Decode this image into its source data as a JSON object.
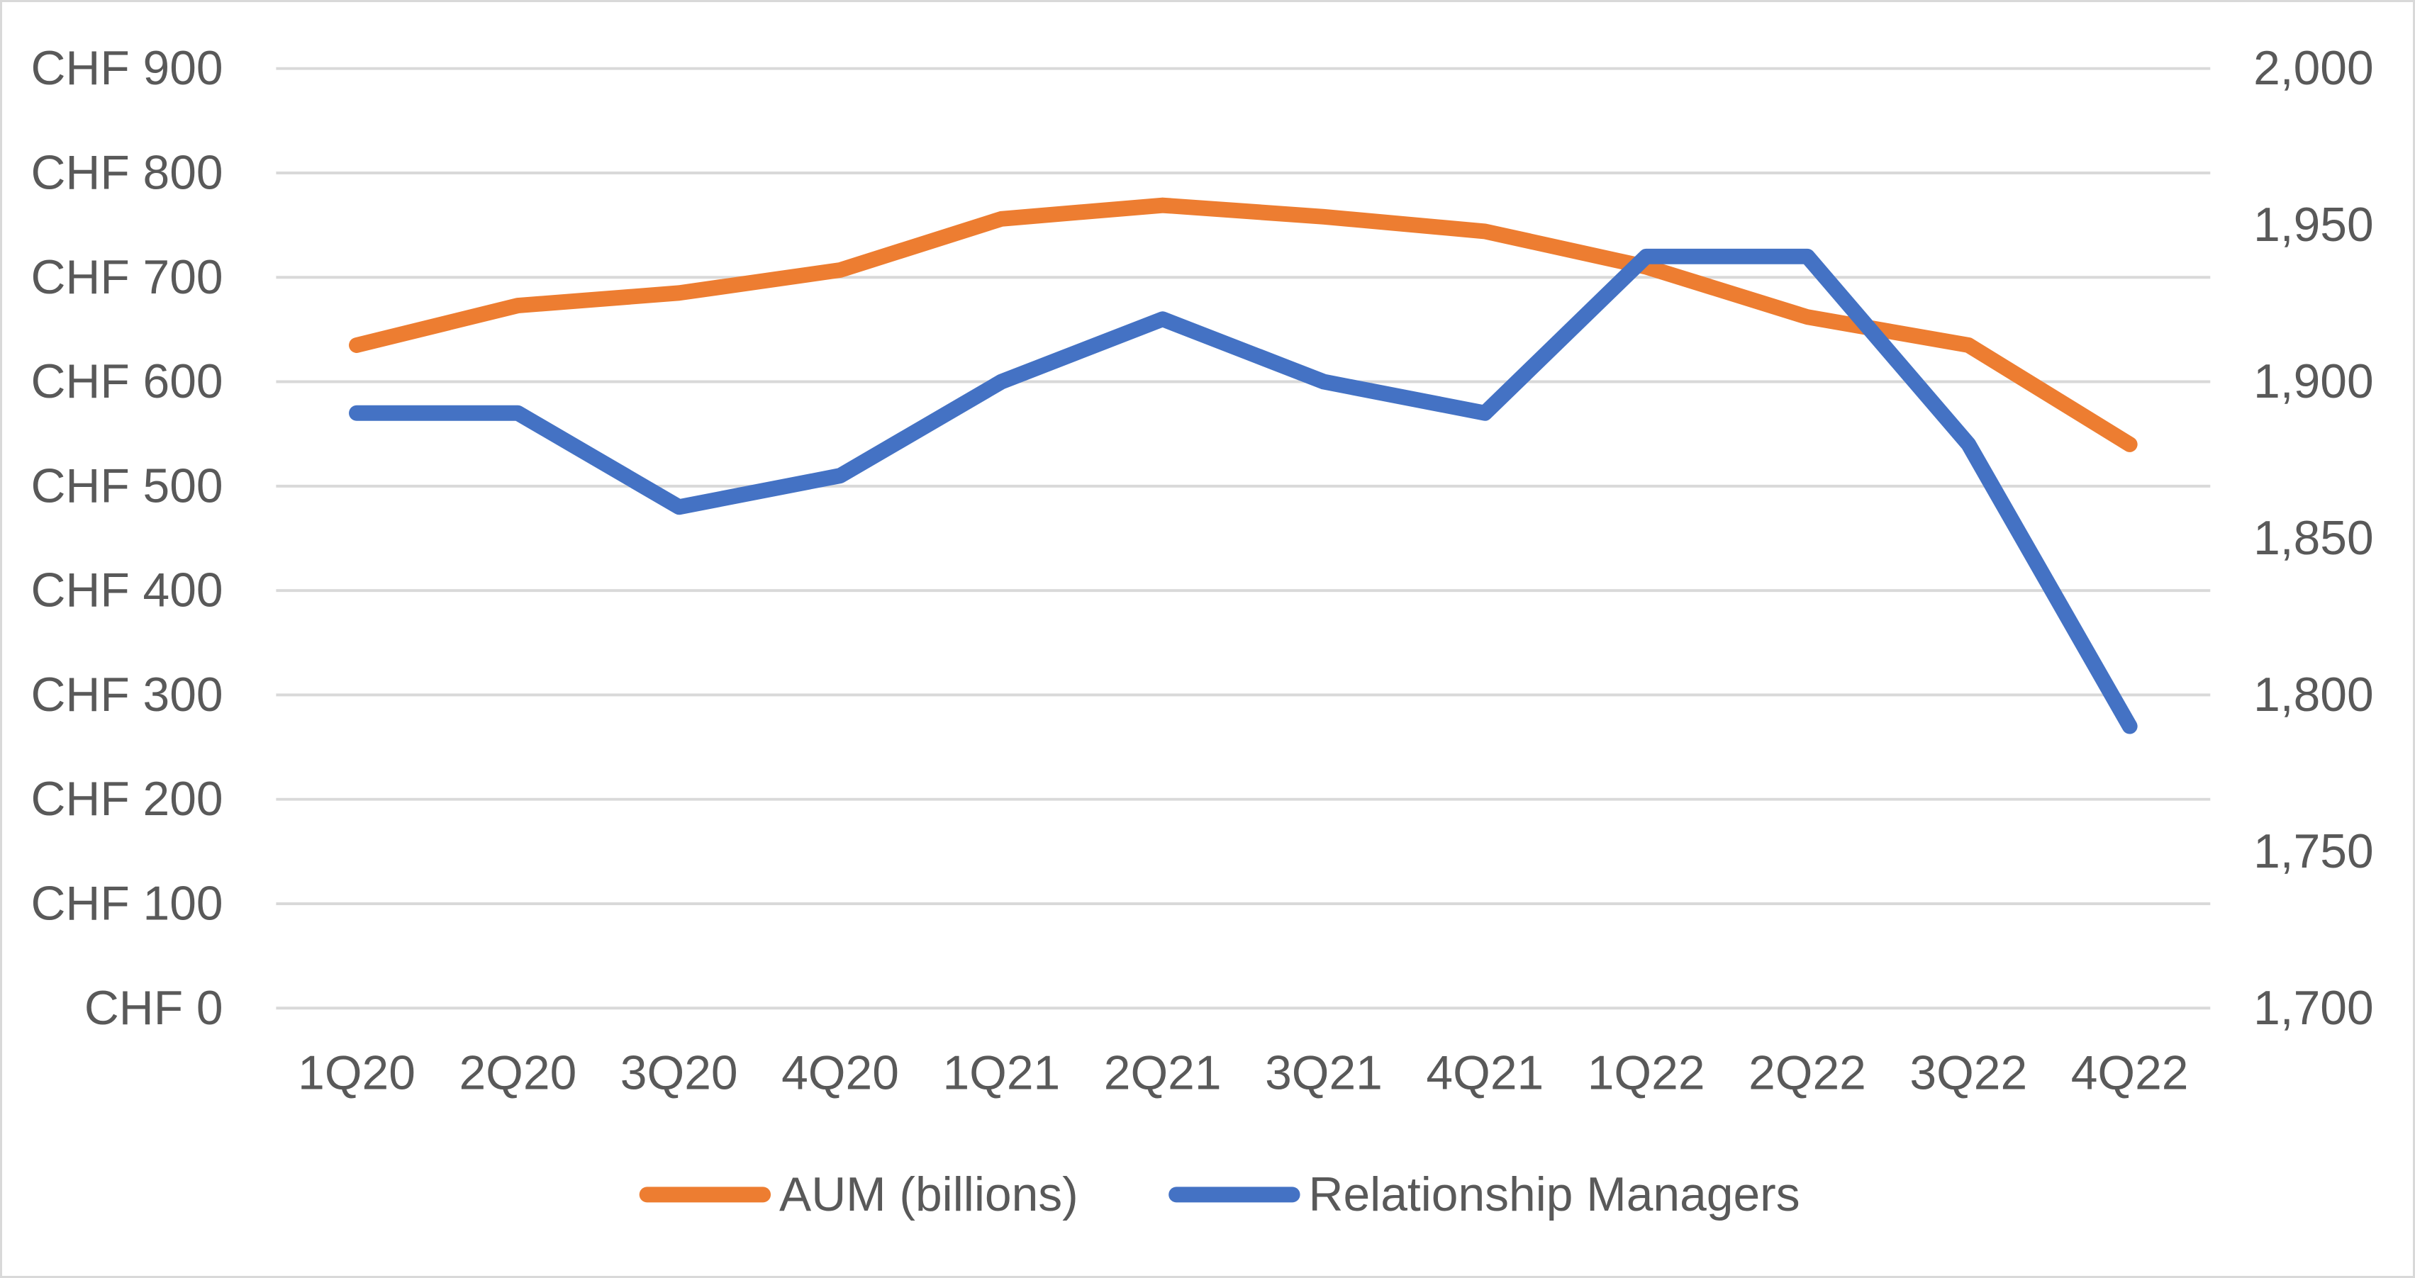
{
  "chart_data": {
    "type": "line",
    "title": "",
    "categories": [
      "1Q20",
      "2Q20",
      "3Q20",
      "4Q20",
      "1Q21",
      "2Q21",
      "3Q21",
      "4Q21",
      "1Q22",
      "2Q22",
      "3Q22",
      "4Q22"
    ],
    "series": [
      {
        "name": "AUM (billions)",
        "axis": "left",
        "color": "#ED7D31",
        "values": [
          635,
          673,
          685,
          707,
          756,
          769,
          758,
          744,
          710,
          662,
          635,
          540
        ]
      },
      {
        "name": "Relationship Managers",
        "axis": "right",
        "color": "#4472C4",
        "values": [
          1890,
          1890,
          1860,
          1870,
          1900,
          1920,
          1900,
          1890,
          1940,
          1940,
          1880,
          1790
        ]
      }
    ],
    "left_axis": {
      "min": 0,
      "max": 900,
      "step": 100,
      "tick_labels": [
        "CHF 0",
        "CHF 100",
        "CHF 200",
        "CHF 300",
        "CHF 400",
        "CHF 500",
        "CHF 600",
        "CHF 700",
        "CHF 800",
        "CHF 900"
      ]
    },
    "right_axis": {
      "min": 1700,
      "max": 2000,
      "step": 50,
      "tick_labels": [
        "1,700",
        "1,750",
        "1,800",
        "1,850",
        "1,900",
        "1,950",
        "2,000"
      ]
    },
    "grid": true,
    "legend_position": "bottom",
    "legend": [
      {
        "label": "AUM (billions)",
        "color": "#ED7D31"
      },
      {
        "label": "Relationship Managers",
        "color": "#4472C4"
      }
    ],
    "styles": {
      "text_color": "#595959",
      "gridline_color": "#D9D9D9",
      "border_color": "#D9D9D9",
      "background": "#FFFFFF"
    }
  }
}
